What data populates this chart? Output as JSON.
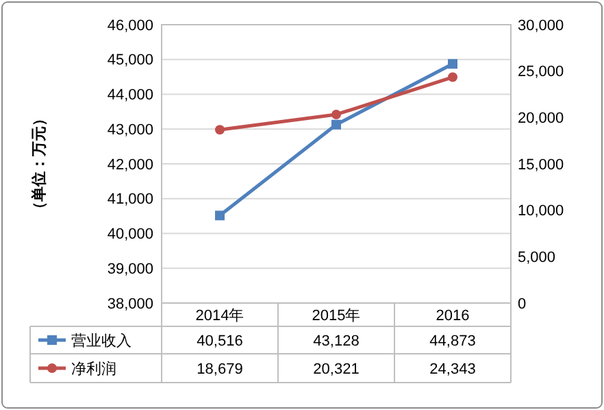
{
  "chart_data": {
    "type": "line",
    "ylabel": "（单位：万元）",
    "categories": [
      "2014年",
      "2015年",
      "2016"
    ],
    "series": [
      {
        "name": "营业收入",
        "color": "#4f81bd",
        "values": [
          40516,
          43128,
          44873
        ],
        "value_labels": [
          "40,516",
          "43,128",
          "44,873"
        ],
        "marker": "square"
      },
      {
        "name": "净利润",
        "color": "#c0504d",
        "values": [
          18679,
          20321,
          24343
        ],
        "value_labels": [
          "18,679",
          "20,321",
          "24,343"
        ],
        "marker": "circle",
        "axis": "y2"
      }
    ],
    "ylim": [
      38000,
      46000
    ],
    "yticks": [
      {
        "value": 38000,
        "label": "38,000"
      },
      {
        "value": 39000,
        "label": "39,000"
      },
      {
        "value": 40000,
        "label": "40,000"
      },
      {
        "value": 41000,
        "label": "41,000"
      },
      {
        "value": 42000,
        "label": "42,000"
      },
      {
        "value": 43000,
        "label": "43,000"
      },
      {
        "value": 44000,
        "label": "44,000"
      },
      {
        "value": 45000,
        "label": "45,000"
      },
      {
        "value": 46000,
        "label": "46,000"
      }
    ],
    "y2lim": [
      0,
      30000
    ],
    "y2ticks": [
      0,
      {
        "value": 5000,
        "label": "5,000"
      },
      {
        "value": 10000,
        "label": "10,000"
      },
      {
        "value": 15000,
        "label": "15,000"
      },
      {
        "value": 20000,
        "label": "20,000"
      },
      {
        "value": 25000,
        "label": "25,000"
      },
      {
        "value": 30000,
        "label": "30,000"
      }
    ],
    "grid": "y",
    "legend": "bottom",
    "line_style": "solid"
  }
}
